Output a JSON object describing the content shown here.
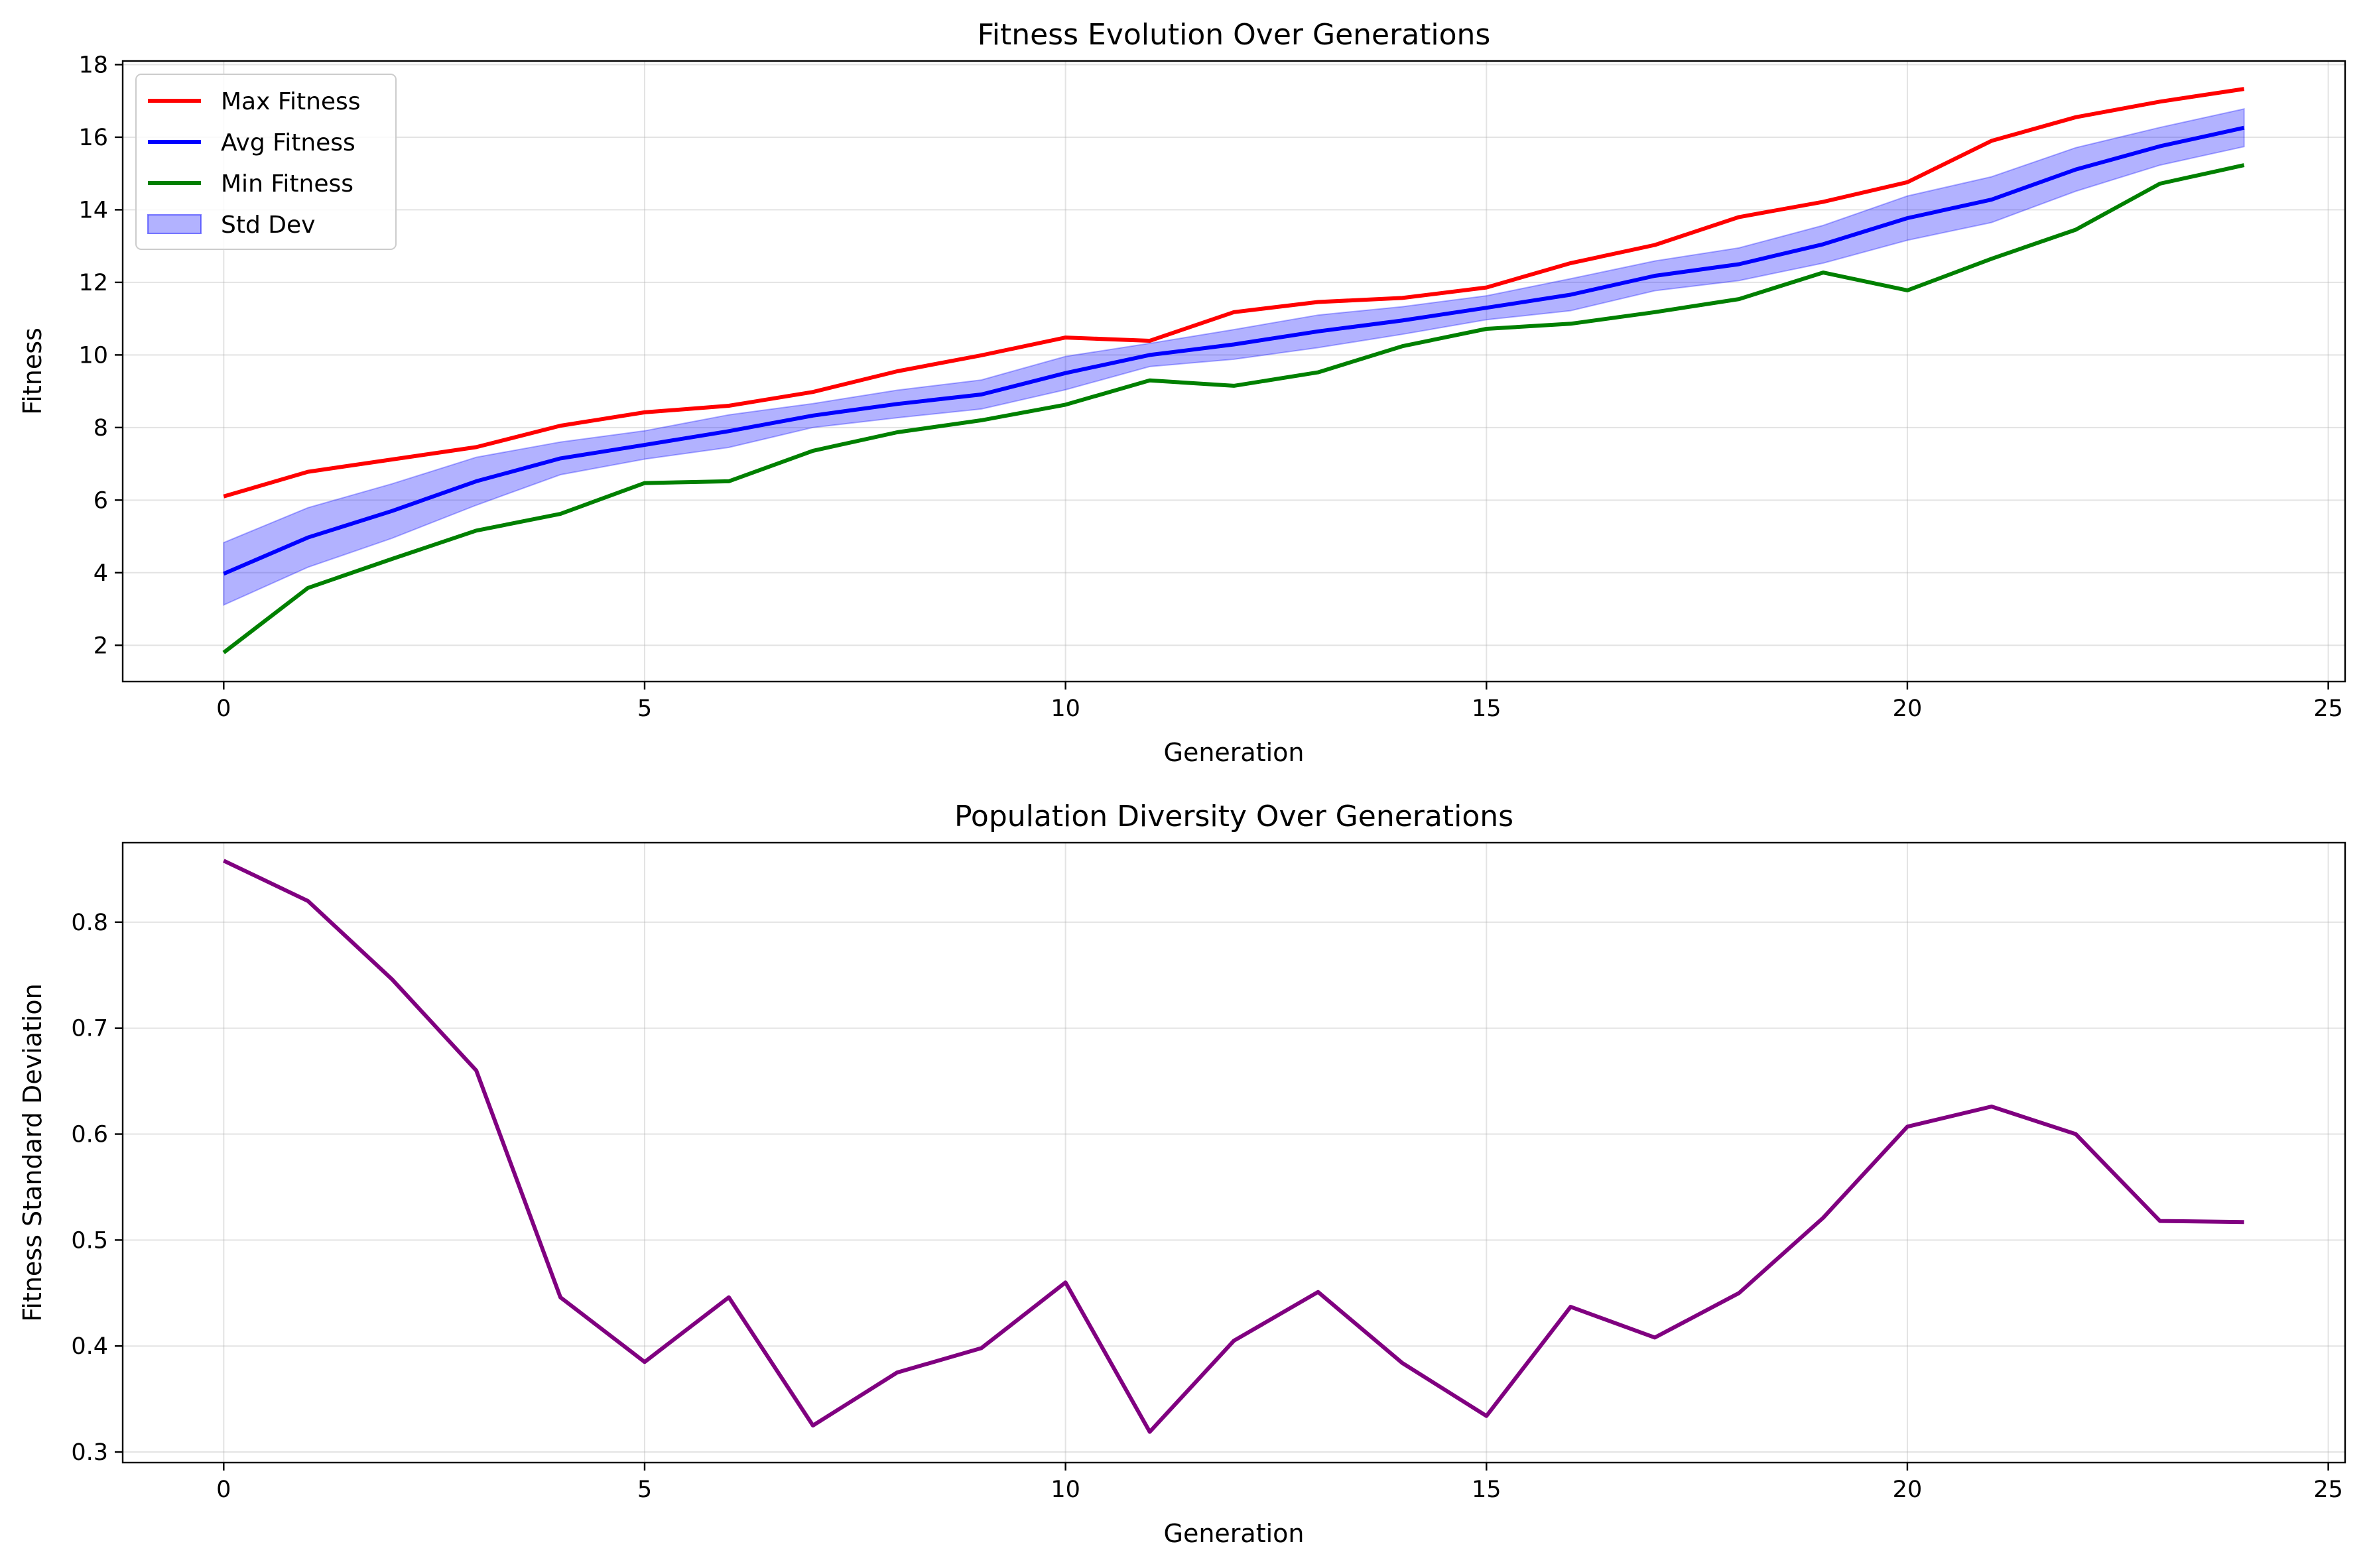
{
  "chart_data": [
    {
      "type": "line",
      "title": "Fitness Evolution Over Generations",
      "xlabel": "Generation",
      "ylabel": "Fitness",
      "xlim": [
        -1.2,
        25.2
      ],
      "ylim": [
        1.0,
        18.1
      ],
      "xticks": [
        0,
        5,
        10,
        15,
        20,
        25
      ],
      "yticks": [
        2,
        4,
        6,
        8,
        10,
        12,
        14,
        16,
        18
      ],
      "grid": true,
      "legend_position": "upper left",
      "x": [
        0,
        1,
        2,
        3,
        4,
        5,
        6,
        7,
        8,
        9,
        10,
        11,
        12,
        13,
        14,
        15,
        16,
        17,
        18,
        19,
        20,
        21,
        22,
        23,
        24
      ],
      "series": [
        {
          "name": "Max Fitness",
          "color": "#ff0000",
          "values": [
            6.1,
            6.78,
            7.12,
            7.46,
            8.05,
            8.42,
            8.6,
            8.98,
            9.55,
            9.99,
            10.48,
            10.39,
            11.18,
            11.46,
            11.57,
            11.86,
            12.53,
            13.03,
            13.8,
            14.22,
            14.76,
            15.9,
            16.55,
            16.98,
            17.33
          ]
        },
        {
          "name": "Avg Fitness",
          "color": "#0000ff",
          "values": [
            3.97,
            4.97,
            5.7,
            6.52,
            7.15,
            7.52,
            7.9,
            8.33,
            8.65,
            8.91,
            9.5,
            10.0,
            10.29,
            10.65,
            10.95,
            11.3,
            11.66,
            12.18,
            12.5,
            13.05,
            13.77,
            14.28,
            15.11,
            15.75,
            16.26
          ]
        },
        {
          "name": "Min Fitness",
          "color": "#008000",
          "values": [
            1.8,
            3.58,
            4.38,
            5.16,
            5.62,
            6.47,
            6.52,
            7.36,
            7.87,
            8.2,
            8.63,
            9.3,
            9.15,
            9.52,
            10.24,
            10.72,
            10.86,
            11.18,
            11.54,
            12.27,
            11.78,
            12.65,
            13.45,
            14.72,
            15.23
          ]
        }
      ],
      "band": {
        "name": "Std Dev",
        "color": "#0000ff",
        "center_series": "Avg Fitness",
        "half_width": [
          0.86,
          0.82,
          0.75,
          0.66,
          0.45,
          0.39,
          0.45,
          0.33,
          0.38,
          0.4,
          0.46,
          0.32,
          0.41,
          0.45,
          0.38,
          0.33,
          0.44,
          0.41,
          0.45,
          0.52,
          0.61,
          0.63,
          0.6,
          0.52,
          0.52
        ]
      }
    },
    {
      "type": "line",
      "title": "Population Diversity Over Generations",
      "xlabel": "Generation",
      "ylabel": "Fitness Standard Deviation",
      "xlim": [
        -1.2,
        25.2
      ],
      "ylim": [
        0.29,
        0.875
      ],
      "xticks": [
        0,
        5,
        10,
        15,
        20,
        25
      ],
      "yticks": [
        0.3,
        0.4,
        0.5,
        0.6,
        0.7,
        0.8
      ],
      "grid": true,
      "x": [
        0,
        1,
        2,
        3,
        4,
        5,
        6,
        7,
        8,
        9,
        10,
        11,
        12,
        13,
        14,
        15,
        16,
        17,
        18,
        19,
        20,
        21,
        22,
        23,
        24
      ],
      "series": [
        {
          "color": "#800080",
          "values": [
            0.858,
            0.82,
            0.746,
            0.66,
            0.446,
            0.385,
            0.446,
            0.325,
            0.375,
            0.398,
            0.46,
            0.319,
            0.405,
            0.451,
            0.384,
            0.334,
            0.437,
            0.408,
            0.45,
            0.521,
            0.607,
            0.626,
            0.6,
            0.518,
            0.517
          ]
        }
      ]
    }
  ]
}
